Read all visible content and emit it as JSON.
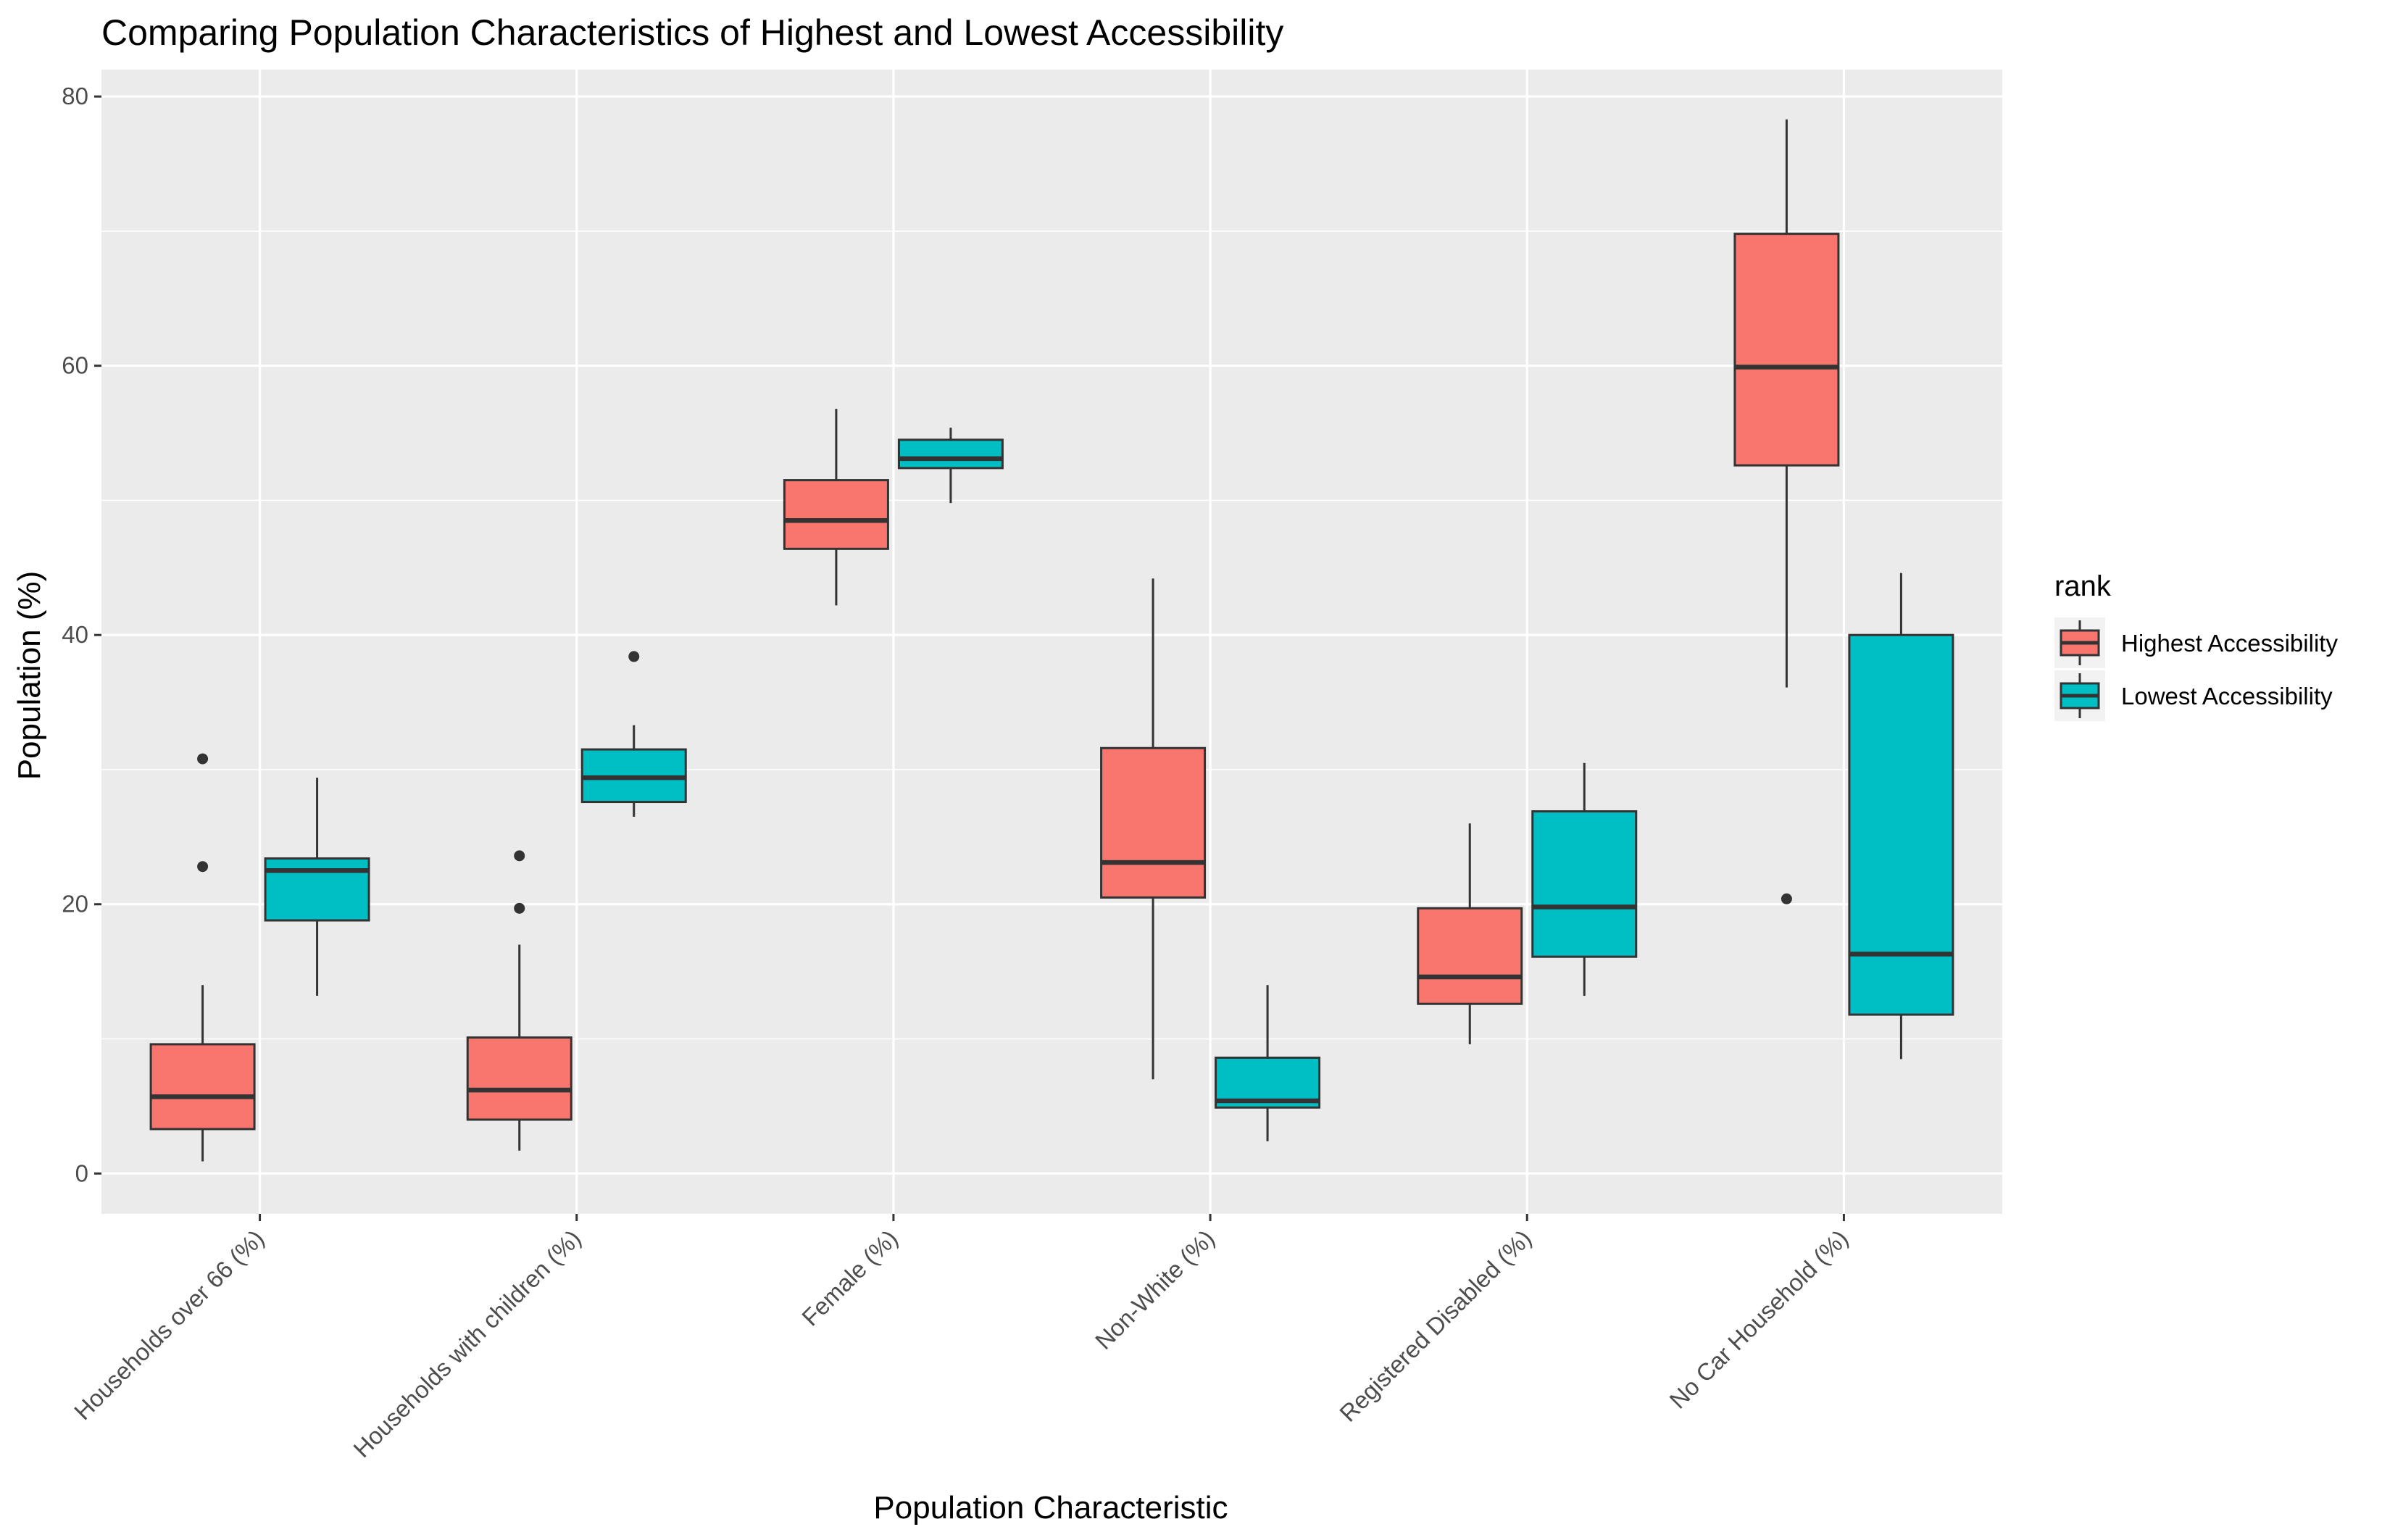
{
  "chart_data": {
    "type": "boxplot",
    "title": "Comparing Population Characteristics of Highest and Lowest Accessibility",
    "xlabel": "Population Characteristic",
    "ylabel": "Population (%)",
    "ylim": [
      -3,
      82
    ],
    "yticks": [
      0,
      20,
      40,
      60,
      80
    ],
    "grid": true,
    "legend_position": "right",
    "legend_title": "rank",
    "categories": [
      "Households over 66 (%)",
      "Households with children (%)",
      "Female (%)",
      "Non-White (%)",
      "Registered Disabled (%)",
      "No Car Household (%)"
    ],
    "series": [
      {
        "name": "Highest Accessibility",
        "color": "#F8766D",
        "boxes": [
          {
            "min": 0.9,
            "q1": 3.3,
            "median": 5.7,
            "q3": 9.6,
            "max": 14.0,
            "outliers": [
              22.8,
              30.8
            ]
          },
          {
            "min": 1.7,
            "q1": 4.0,
            "median": 6.2,
            "q3": 10.1,
            "max": 17.0,
            "outliers": [
              19.7,
              23.6
            ]
          },
          {
            "min": 42.2,
            "q1": 46.4,
            "median": 48.5,
            "q3": 51.5,
            "max": 56.8,
            "outliers": []
          },
          {
            "min": 7.0,
            "q1": 20.5,
            "median": 23.1,
            "q3": 31.6,
            "max": 44.2,
            "outliers": []
          },
          {
            "min": 9.6,
            "q1": 12.6,
            "median": 14.6,
            "q3": 19.7,
            "max": 26.0,
            "outliers": []
          },
          {
            "min": 36.1,
            "q1": 52.6,
            "median": 59.9,
            "q3": 69.8,
            "max": 78.3,
            "outliers": [
              20.4
            ]
          }
        ]
      },
      {
        "name": "Lowest Accessibility",
        "color": "#00BFC4",
        "boxes": [
          {
            "min": 13.2,
            "q1": 18.8,
            "median": 22.5,
            "q3": 23.4,
            "max": 29.4,
            "outliers": []
          },
          {
            "min": 26.5,
            "q1": 27.6,
            "median": 29.4,
            "q3": 31.5,
            "max": 33.3,
            "outliers": [
              38.4
            ]
          },
          {
            "min": 49.8,
            "q1": 52.4,
            "median": 53.1,
            "q3": 54.5,
            "max": 55.4,
            "outliers": []
          },
          {
            "min": 2.4,
            "q1": 4.9,
            "median": 5.4,
            "q3": 8.6,
            "max": 14.0,
            "outliers": []
          },
          {
            "min": 13.2,
            "q1": 16.1,
            "median": 19.8,
            "q3": 26.9,
            "max": 30.5,
            "outliers": []
          },
          {
            "min": 8.5,
            "q1": 11.8,
            "median": 16.3,
            "q3": 40.0,
            "max": 44.6,
            "outliers": []
          }
        ]
      }
    ]
  }
}
